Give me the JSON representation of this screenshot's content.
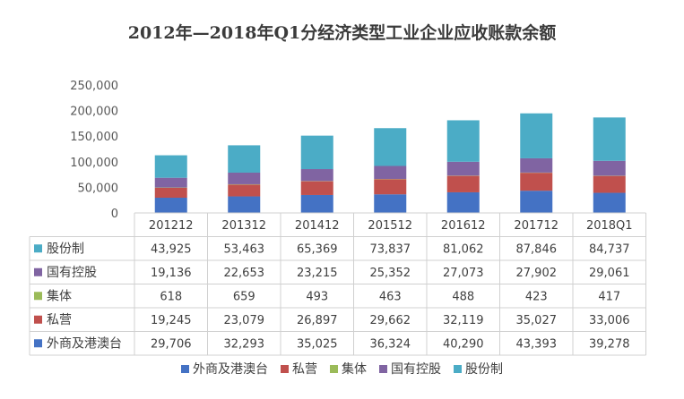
{
  "chart_data": {
    "type": "bar",
    "stacked": true,
    "title": "2012年—2018年Q1分经济类型工业企业应收账款余额",
    "categories": [
      "201212",
      "201312",
      "201412",
      "201512",
      "201612",
      "201712",
      "2018Q1"
    ],
    "y_ticks": [
      "0",
      "50,000",
      "100,000",
      "150,000",
      "200,000",
      "250,000"
    ],
    "ylim": [
      0,
      250000
    ],
    "series": [
      {
        "name": "外商及港澳台",
        "color": "#4472c4",
        "values": [
          29706,
          32293,
          35025,
          36324,
          40290,
          43393,
          39278
        ],
        "labels": [
          "29,706",
          "32,293",
          "35,025",
          "36,324",
          "40,290",
          "43,393",
          "39,278"
        ]
      },
      {
        "name": "私营",
        "color": "#c0504d",
        "values": [
          19245,
          23079,
          26897,
          29662,
          32119,
          35027,
          33006
        ],
        "labels": [
          "19,245",
          "23,079",
          "26,897",
          "29,662",
          "32,119",
          "35,027",
          "33,006"
        ]
      },
      {
        "name": "集体",
        "color": "#9bbb59",
        "values": [
          618,
          659,
          493,
          463,
          488,
          423,
          417
        ],
        "labels": [
          "618",
          "659",
          "493",
          "463",
          "488",
          "423",
          "417"
        ]
      },
      {
        "name": "国有控股",
        "color": "#8064a2",
        "values": [
          19136,
          22653,
          23215,
          25352,
          27073,
          27902,
          29061
        ],
        "labels": [
          "19,136",
          "22,653",
          "23,215",
          "25,352",
          "27,073",
          "27,902",
          "29,061"
        ]
      },
      {
        "name": "股份制",
        "color": "#4bacc6",
        "values": [
          43925,
          53463,
          65369,
          73837,
          81062,
          87846,
          84737
        ],
        "labels": [
          "43,925",
          "53,463",
          "65,369",
          "73,837",
          "81,062",
          "87,846",
          "84,737"
        ]
      }
    ],
    "table_row_order": [
      "股份制",
      "国有控股",
      "集体",
      "私营",
      "外商及港澳台"
    ],
    "legend_position": "bottom",
    "grid": false,
    "data_table": true
  }
}
